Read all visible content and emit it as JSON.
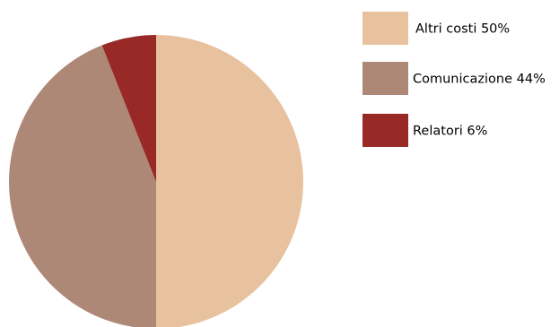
{
  "chart_data": {
    "type": "pie",
    "slices": [
      {
        "label": "Altri costi 50%",
        "value": 50,
        "color": "#E8C29E"
      },
      {
        "label": "Comunicazione 44%",
        "value": 44,
        "color": "#AE8877"
      },
      {
        "label": "Relatori 6%",
        "value": 6,
        "color": "#982927"
      }
    ],
    "legend_position": "right",
    "start_angle": "top",
    "direction": "clockwise"
  }
}
